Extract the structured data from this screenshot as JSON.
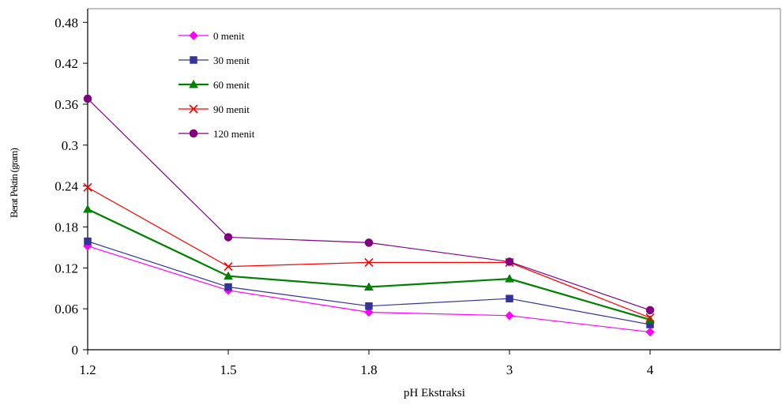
{
  "chart_data": {
    "type": "line",
    "xlabel": "pH Ekstraksi",
    "ylabel": "Berat Pektin (gram)",
    "categories": [
      "1.2",
      "1.5",
      "1.8",
      "3",
      "4"
    ],
    "yticks": [
      "0",
      "0.06",
      "0.12",
      "0.18",
      "0.24",
      "0.3",
      "0.36",
      "0.42",
      "0.48"
    ],
    "ylim": [
      0,
      0.5
    ],
    "grid": false,
    "legend_position": "top-left",
    "series": [
      {
        "name": "0 menit",
        "color": "#ff00ff",
        "marker": "diamond",
        "values": [
          0.152,
          0.087,
          0.055,
          0.05,
          0.026
        ]
      },
      {
        "name": "30 menit",
        "color": "#333399",
        "marker": "square",
        "values": [
          0.159,
          0.092,
          0.064,
          0.075,
          0.037
        ]
      },
      {
        "name": "60 menit",
        "color": "#008000",
        "marker": "triangle",
        "values": [
          0.206,
          0.108,
          0.092,
          0.104,
          0.044
        ]
      },
      {
        "name": "90 menit",
        "color": "#ff0000",
        "marker": "x",
        "values": [
          0.238,
          0.122,
          0.128,
          0.128,
          0.047
        ]
      },
      {
        "name": "120 menit",
        "color": "#800080",
        "marker": "circle",
        "values": [
          0.368,
          0.165,
          0.157,
          0.129,
          0.058
        ]
      }
    ]
  }
}
